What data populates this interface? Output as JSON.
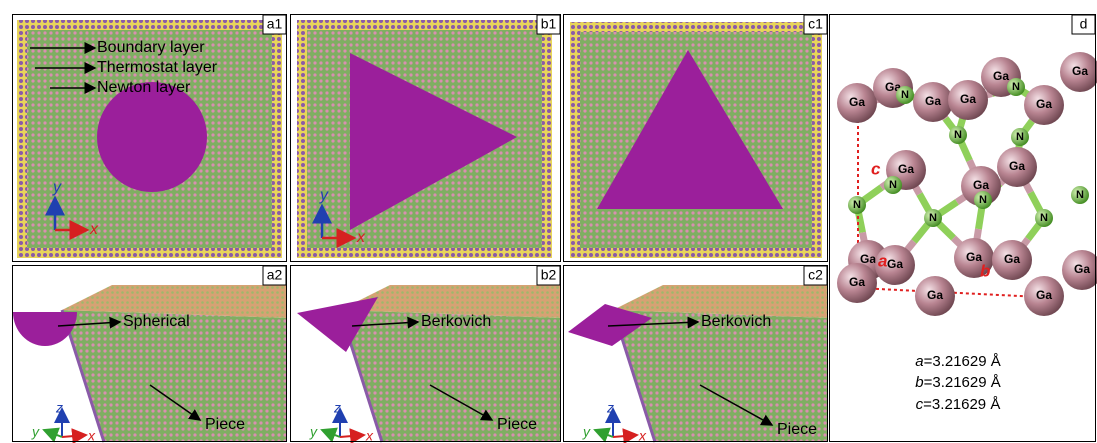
{
  "panels": [
    "a1",
    "b1",
    "c1",
    "d",
    "a2",
    "b2",
    "c2"
  ],
  "layers": [
    "Boundary layer",
    "Thermostat layer",
    "Newton layer"
  ],
  "axes_2d": [
    {
      "x": "x",
      "y": "y"
    },
    {
      "x": "x",
      "y": "y"
    }
  ],
  "axes_3d": [
    {
      "x": "x",
      "y": "y",
      "z": "z"
    },
    {
      "x": "x",
      "y": "y",
      "z": "z"
    },
    {
      "x": "x",
      "y": "y",
      "z": "z"
    }
  ],
  "indenters": [
    "Spherical",
    "Berkovich",
    "Berkovich"
  ],
  "pieces": [
    "Piece",
    "Piece",
    "Piece"
  ],
  "atoms": [
    "Ga",
    "Ga",
    "N",
    "Ga",
    "Ga",
    "Ga",
    "N",
    "Ga",
    "Ga",
    "N",
    "N",
    "Ga",
    "Ga",
    "Ga",
    "N",
    "N",
    "N",
    "N",
    "N",
    "N",
    "Ga",
    "Ga",
    "Ga",
    "Ga",
    "Ga",
    "Ga",
    "Ga",
    "Ga"
  ],
  "cell_labels": [
    "a",
    "b",
    "c"
  ],
  "parameters": [
    {
      "symbol": "a",
      "text": "=3.21629 Å"
    },
    {
      "symbol": "b",
      "text": "=3.21629 Å"
    },
    {
      "symbol": "c",
      "text": "=3.21629 Å"
    }
  ]
}
